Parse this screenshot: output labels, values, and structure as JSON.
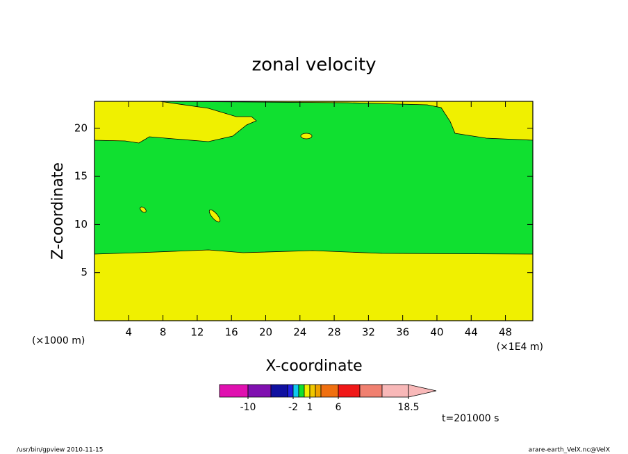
{
  "chart_data": {
    "type": "contour",
    "title": "zonal velocity",
    "x_label": "X-coordinate",
    "y_label": "Z-coordinate",
    "x_unit_left": "(×1000 m)",
    "x_unit_right": "(×1E4 m)",
    "xlim": [
      0,
      51.2
    ],
    "ylim": [
      0,
      22.8
    ],
    "xticks": [
      4,
      8,
      12,
      16,
      20,
      24,
      28,
      32,
      36,
      40,
      44,
      48
    ],
    "yticks": [
      5,
      10,
      15,
      20
    ],
    "colorbar": {
      "colors": [
        "#e010b0",
        "#8010b0",
        "#1010a0",
        "#2020e0",
        "#10c8f0",
        "#10e030",
        "#f0f000",
        "#f0c800",
        "#f0a000",
        "#f07010",
        "#f01818",
        "#f08070",
        "#f8b8b8"
      ],
      "ticks": [
        -10,
        -2,
        1,
        6,
        18.5
      ]
    },
    "time_label": "t=201000 s",
    "footer_left": "/usr/bin/gpview   2010-11-15",
    "footer_right": "arare-earth_VelX.nc@VelX"
  }
}
